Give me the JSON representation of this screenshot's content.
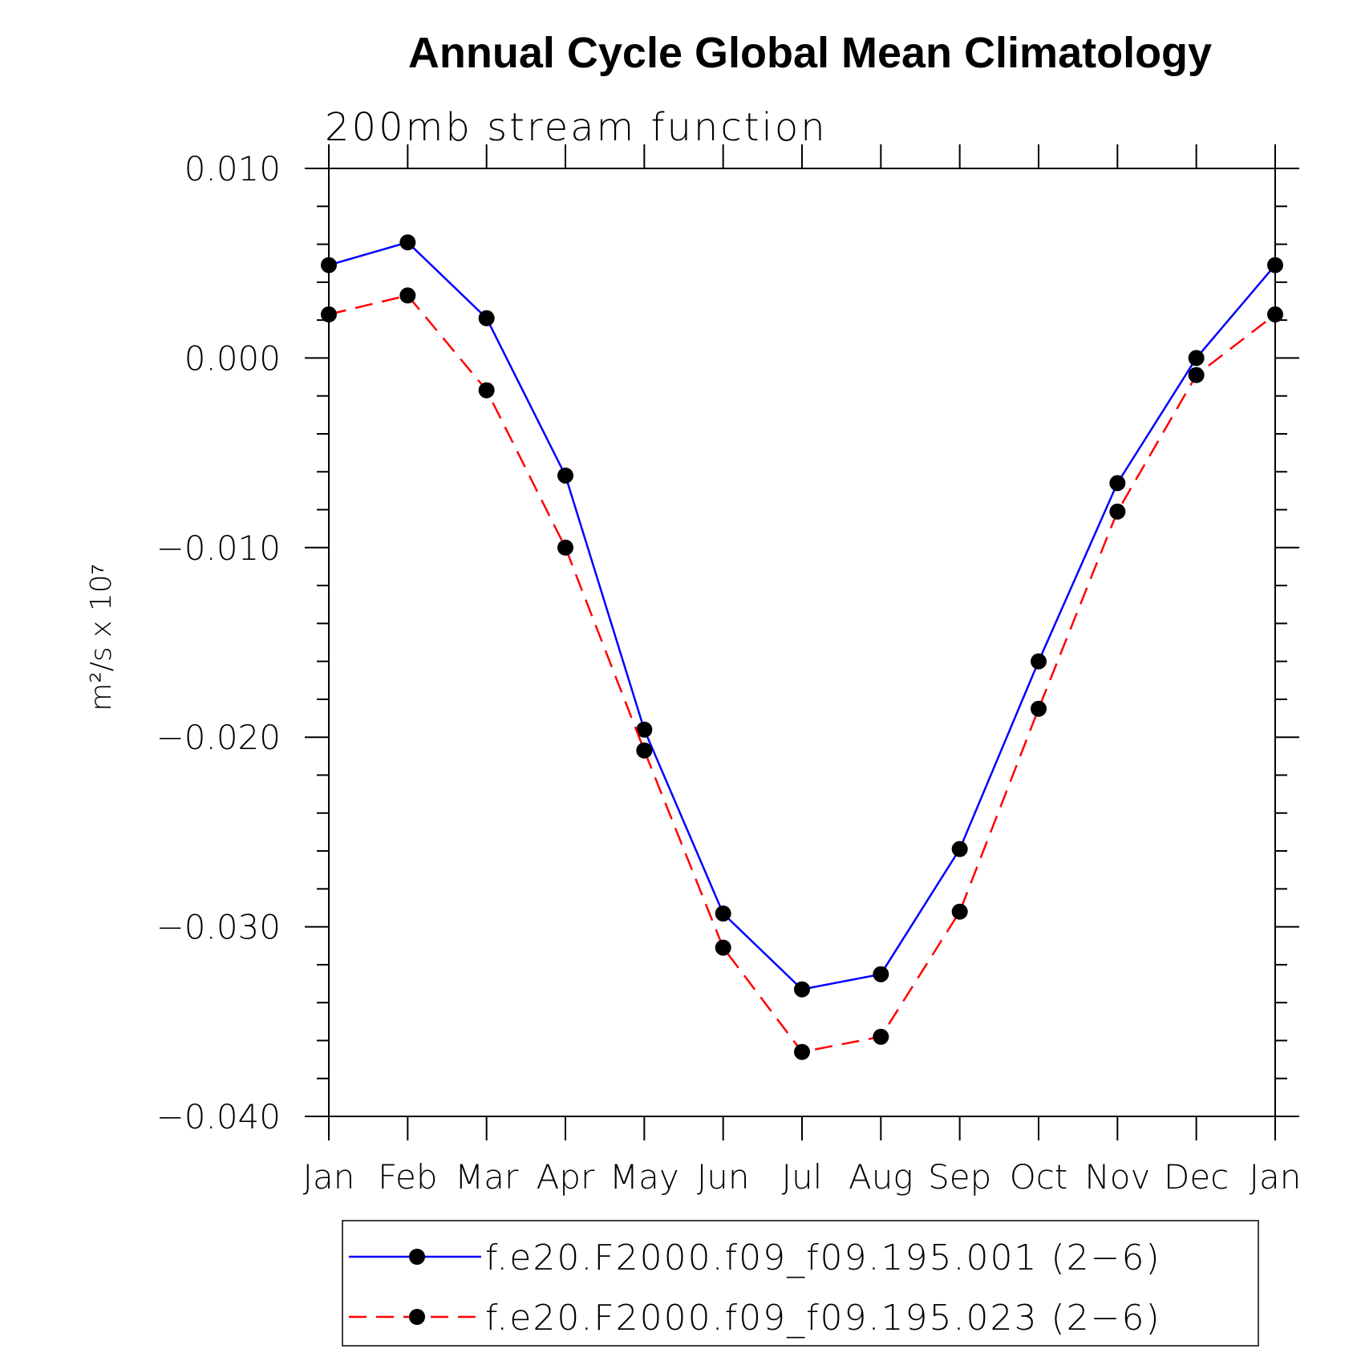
{
  "chart_data": {
    "type": "line",
    "title": "Annual Cycle Global Mean Climatology",
    "subtitle": "200mb stream function",
    "ylabel": "m²/s x 10⁷",
    "xlabel": "",
    "categories": [
      "Jan",
      "Feb",
      "Mar",
      "Apr",
      "May",
      "Jun",
      "Jul",
      "Aug",
      "Sep",
      "Oct",
      "Nov",
      "Dec",
      "Jan"
    ],
    "ylim": [
      -0.04,
      0.01
    ],
    "yticks": [
      0.01,
      0.0,
      -0.01,
      -0.02,
      -0.03,
      -0.04
    ],
    "ytick_labels": [
      "0.010",
      "0.000",
      "−0.010",
      "−0.020",
      "−0.030",
      "−0.040"
    ],
    "series": [
      {
        "name": "f.e20.F2000.f09_f09.195.001 (2−6)",
        "color": "#0000ff",
        "dash": "solid",
        "values": [
          0.0049,
          0.0061,
          0.0021,
          -0.0062,
          -0.0196,
          -0.0293,
          -0.0333,
          -0.0325,
          -0.0259,
          -0.016,
          -0.0066,
          0.0,
          0.0049
        ]
      },
      {
        "name": "f.e20.F2000.f09_f09.195.023 (2−6)",
        "color": "#ff0000",
        "dash": "dashed",
        "values": [
          0.0023,
          0.0033,
          -0.0017,
          -0.01,
          -0.0207,
          -0.0311,
          -0.0366,
          -0.0358,
          -0.0292,
          -0.0185,
          -0.0081,
          -0.0009,
          0.0023
        ]
      }
    ],
    "marker_color": "#000000",
    "legend_position": "bottom"
  }
}
